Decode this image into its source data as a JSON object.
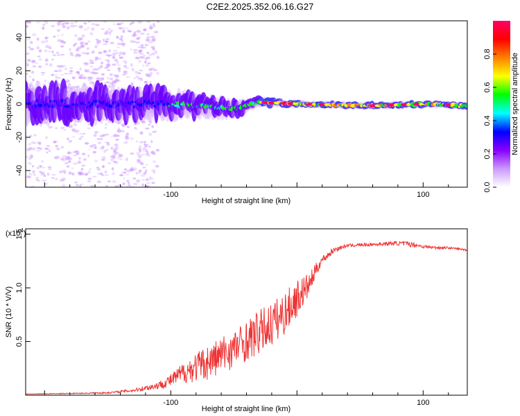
{
  "title": "C2E2.2025.352.06.16.G27",
  "chart_data": [
    {
      "type": "heatmap",
      "title": "C2E2.2025.352.06.16.G27",
      "xlabel": "Height of straight line (km)",
      "ylabel": "Frequency (Hz)",
      "xlim": [
        -215,
        135
      ],
      "ylim": [
        -50,
        50
      ],
      "xticks": [
        -100,
        100
      ],
      "yticks": [
        -40,
        -20,
        0,
        20,
        40
      ],
      "colorbar": {
        "label": "Normalized spectral amplitude",
        "range": [
          0,
          1
        ],
        "ticks": [
          "0.0",
          "0.2",
          "0.4",
          "0.6",
          "0.8"
        ],
        "colors": [
          "#ffffff",
          "#cc99ff",
          "#8800ff",
          "#0000ff",
          "#00ffff",
          "#00ff00",
          "#ffff00",
          "#ff8000",
          "#ff0000",
          "#ff0066"
        ]
      },
      "band": {
        "center_hz_by_height": [
          [
            -215,
            0
          ],
          [
            -100,
            0
          ],
          [
            -50,
            -3
          ],
          [
            -30,
            1
          ],
          [
            0,
            0
          ],
          [
            60,
            -1
          ],
          [
            100,
            0
          ],
          [
            135,
            -1
          ]
        ],
        "width_hz_by_height": [
          [
            -215,
            22
          ],
          [
            -120,
            20
          ],
          [
            -60,
            12
          ],
          [
            -30,
            6
          ],
          [
            0,
            4
          ],
          [
            135,
            4
          ]
        ],
        "scatter_extent_hz": 50,
        "scatter_region_km": [
          -215,
          -110
        ]
      }
    },
    {
      "type": "line",
      "xlabel": "Height of straight line (km)",
      "ylabel": "SNR (10 * V/V)",
      "scale_label": "(x10",
      "scale_exp": "4",
      "scale_close": ")",
      "xlim": [
        -215,
        135
      ],
      "ylim": [
        0,
        1.55
      ],
      "xticks": [
        -100,
        100
      ],
      "yticks": [
        "0.5",
        "1.0",
        "1.5"
      ],
      "series": [
        {
          "name": "SNR",
          "color": "#ee3333",
          "x": [
            -215,
            -180,
            -150,
            -130,
            -110,
            -100,
            -90,
            -80,
            -70,
            -60,
            -50,
            -40,
            -30,
            -20,
            -10,
            0,
            10,
            15,
            20,
            30,
            40,
            60,
            80,
            90,
            100,
            110,
            120,
            135
          ],
          "y": [
            0.01,
            0.015,
            0.02,
            0.04,
            0.08,
            0.12,
            0.18,
            0.22,
            0.26,
            0.32,
            0.38,
            0.45,
            0.52,
            0.6,
            0.7,
            0.85,
            1.0,
            1.15,
            1.25,
            1.35,
            1.39,
            1.4,
            1.41,
            1.4,
            1.38,
            1.37,
            1.37,
            1.35
          ],
          "noise_amplitude": [
            0.005,
            0.008,
            0.015,
            0.03,
            0.07,
            0.12,
            0.2,
            0.28,
            0.33,
            0.36,
            0.36,
            0.38,
            0.42,
            0.42,
            0.4,
            0.35,
            0.22,
            0.12,
            0.08,
            0.05,
            0.03,
            0.03,
            0.04,
            0.05,
            0.03,
            0.03,
            0.02,
            0.02
          ]
        }
      ]
    }
  ]
}
